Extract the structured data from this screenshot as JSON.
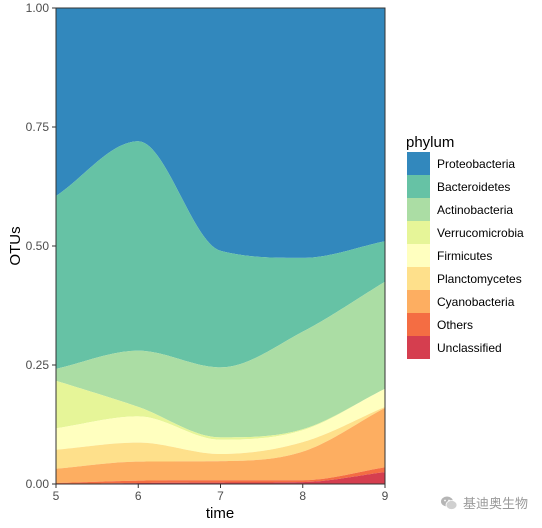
{
  "chart_data": {
    "type": "area",
    "stacked": true,
    "smooth": true,
    "x": [
      5,
      6,
      7,
      8,
      9
    ],
    "xlabel": "time",
    "ylabel": "OTUs",
    "xlim": [
      5,
      9
    ],
    "ylim": [
      0,
      1
    ],
    "x_ticks": [
      "5",
      "6",
      "7",
      "8",
      "9"
    ],
    "y_ticks": [
      "0.00",
      "0.25",
      "0.50",
      "0.75",
      "1.00"
    ],
    "grid": false,
    "legend_title": "phylum",
    "legend_position": "right",
    "series": [
      {
        "name": "Unclassified",
        "color": "#d53e4f",
        "values": [
          0.0,
          0.002,
          0.003,
          0.004,
          0.025
        ]
      },
      {
        "name": "Others",
        "color": "#f46d43",
        "values": [
          0.002,
          0.005,
          0.005,
          0.004,
          0.01
        ]
      },
      {
        "name": "Cyanobacteria",
        "color": "#fdae61",
        "values": [
          0.03,
          0.04,
          0.04,
          0.06,
          0.125
        ]
      },
      {
        "name": "Planctomycetes",
        "color": "#fee08b",
        "values": [
          0.04,
          0.04,
          0.015,
          0.02,
          0.002
        ]
      },
      {
        "name": "Firmicutes",
        "color": "#ffffbf",
        "values": [
          0.045,
          0.055,
          0.03,
          0.025,
          0.038
        ]
      },
      {
        "name": "Verrucomicrobia",
        "color": "#e6f598",
        "values": [
          0.1,
          0.02,
          0.005,
          0.002,
          0.0
        ]
      },
      {
        "name": "Actinobacteria",
        "color": "#abdda4",
        "values": [
          0.025,
          0.118,
          0.147,
          0.205,
          0.225
        ]
      },
      {
        "name": "Bacteroidetes",
        "color": "#66c2a5",
        "values": [
          0.363,
          0.44,
          0.245,
          0.155,
          0.085
        ]
      },
      {
        "name": "Proteobacteria",
        "color": "#3288bd",
        "values": [
          0.395,
          0.28,
          0.51,
          0.525,
          0.49
        ]
      }
    ]
  },
  "watermark": {
    "text": "基迪奥生物"
  }
}
